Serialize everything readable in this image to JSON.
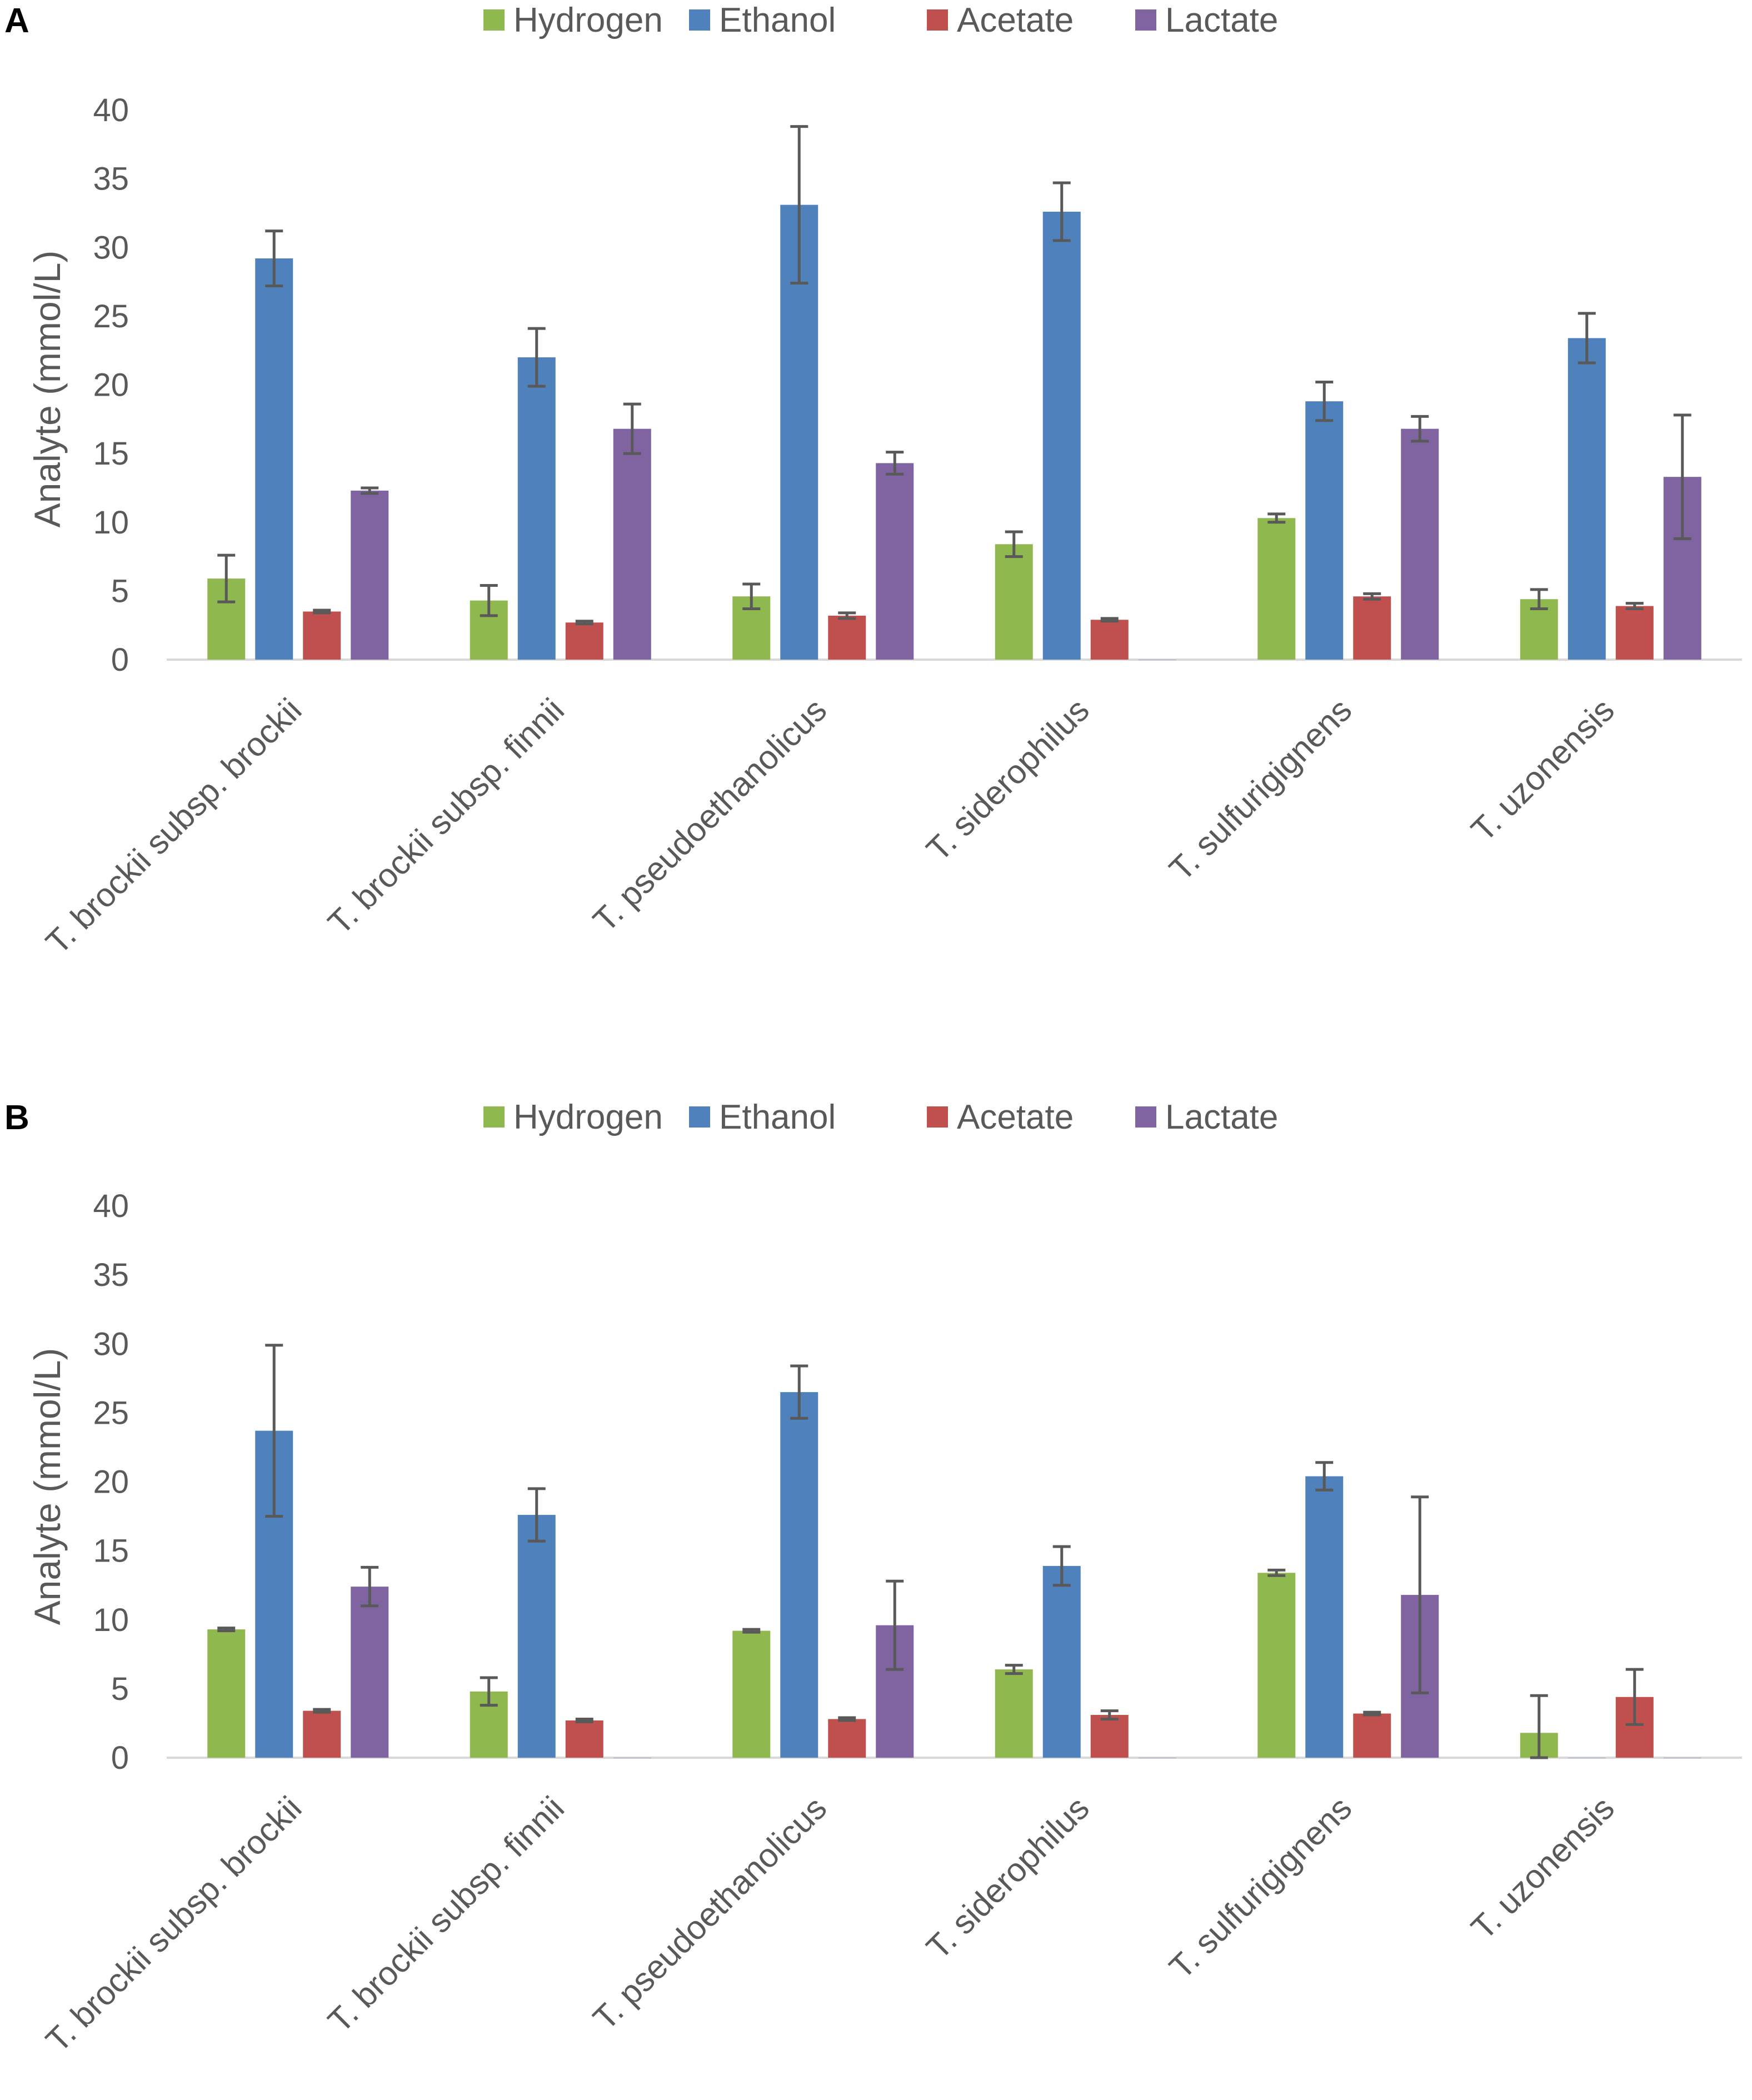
{
  "chart_data": [
    {
      "panel_label": "A",
      "type": "bar",
      "title": "",
      "xlabel": "",
      "ylabel": "Analyte (mmol/L)",
      "ylim": [
        0,
        40
      ],
      "yticks": [
        0,
        5,
        10,
        15,
        20,
        25,
        30,
        35,
        40
      ],
      "grid": false,
      "legend_position": "top",
      "categories": [
        "T. brockii subsp. brockii",
        "T. brockii subsp. finnii",
        "T. pseudoethanolicus",
        "T. siderophilus",
        "T. sulfurigignens",
        "T. uzonensis"
      ],
      "series": [
        {
          "name": "Hydrogen",
          "color": "#8FB84E",
          "values": [
            5.9,
            4.3,
            4.6,
            8.4,
            10.3,
            4.4
          ],
          "errors": [
            1.7,
            1.1,
            0.9,
            0.9,
            0.3,
            0.7
          ]
        },
        {
          "name": "Ethanol",
          "color": "#4F81BD",
          "values": [
            29.2,
            22.0,
            33.1,
            32.6,
            18.8,
            23.4
          ],
          "errors": [
            2.0,
            2.1,
            5.7,
            2.1,
            1.4,
            1.8
          ]
        },
        {
          "name": "Acetate",
          "color": "#C0504D",
          "values": [
            3.5,
            2.7,
            3.2,
            2.9,
            4.6,
            3.9
          ],
          "errors": [
            0.1,
            0.1,
            0.2,
            0.1,
            0.2,
            0.2
          ]
        },
        {
          "name": "Lactate",
          "color": "#8064A2",
          "values": [
            12.3,
            16.8,
            14.3,
            0,
            16.8,
            13.3
          ],
          "errors": [
            0.2,
            1.8,
            0.8,
            0,
            0.9,
            4.5
          ]
        }
      ]
    },
    {
      "panel_label": "B",
      "type": "bar",
      "title": "",
      "xlabel": "",
      "ylabel": "Analyte (mmol/L)",
      "ylim": [
        0,
        40
      ],
      "yticks": [
        0,
        5,
        10,
        15,
        20,
        25,
        30,
        35,
        40
      ],
      "grid": false,
      "legend_position": "top",
      "categories": [
        "T. brockii subsp. brockii",
        "T. brockii subsp. finnii",
        "T. pseudoethanolicus",
        "T. siderophilus",
        "T. sulfurigignens",
        "T. uzonensis"
      ],
      "series": [
        {
          "name": "Hydrogen",
          "color": "#8FB84E",
          "values": [
            9.3,
            4.8,
            9.2,
            6.4,
            13.4,
            1.8
          ],
          "errors": [
            0.1,
            1.0,
            0.1,
            0.3,
            0.2,
            2.7
          ]
        },
        {
          "name": "Ethanol",
          "color": "#4F81BD",
          "values": [
            23.7,
            17.6,
            26.5,
            13.9,
            20.4,
            0
          ],
          "errors": [
            6.2,
            1.9,
            1.9,
            1.4,
            1.0,
            0
          ]
        },
        {
          "name": "Acetate",
          "color": "#C0504D",
          "values": [
            3.4,
            2.7,
            2.8,
            3.1,
            3.2,
            4.4
          ],
          "errors": [
            0.1,
            0.1,
            0.1,
            0.3,
            0.1,
            2.0
          ]
        },
        {
          "name": "Lactate",
          "color": "#8064A2",
          "values": [
            12.4,
            0,
            9.6,
            0,
            11.8,
            0
          ],
          "errors": [
            1.4,
            0,
            3.2,
            0,
            7.1,
            0
          ]
        }
      ]
    }
  ]
}
